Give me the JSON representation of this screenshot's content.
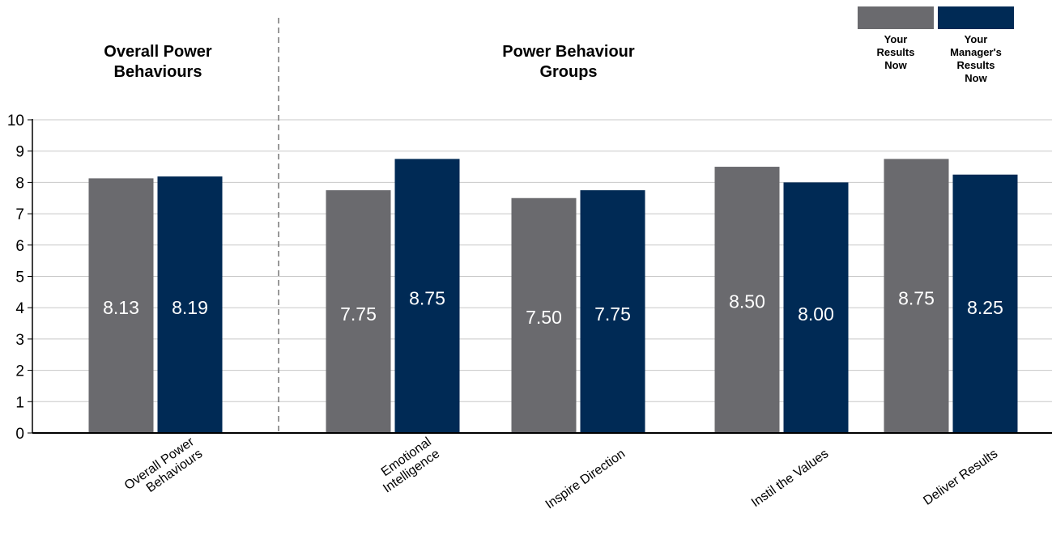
{
  "colors": {
    "your_results": "#6a6a6e",
    "manager_results": "#002a55",
    "grid": "#c8c8c8",
    "divider": "#777777",
    "value_text": "#ffffff"
  },
  "section_titles": {
    "left": [
      "Overall Power",
      "Behaviours"
    ],
    "right": [
      "Power Behaviour",
      "Groups"
    ]
  },
  "chart_data": {
    "type": "bar",
    "categories": [
      [
        "Overall Power",
        "Behaviours"
      ],
      [
        "Emotional",
        "Intelligence"
      ],
      [
        "Inspire Direction"
      ],
      [
        "Instil the Values"
      ],
      [
        "Deliver Results"
      ]
    ],
    "series": [
      {
        "name": "Your Results Now",
        "legend_lines": [
          "Your",
          "Results",
          "Now"
        ],
        "values": [
          8.13,
          7.75,
          7.5,
          8.5,
          8.75
        ],
        "labels": [
          "8.13",
          "7.75",
          "7.50",
          "8.50",
          "8.75"
        ],
        "label_values": [
          4,
          3.8,
          3.7,
          4.2,
          4.3
        ]
      },
      {
        "name": "Your Manager's Results Now",
        "legend_lines": [
          "Your",
          "Manager's",
          "Results",
          "Now"
        ],
        "values": [
          8.19,
          8.75,
          7.75,
          8.0,
          8.25
        ],
        "labels": [
          "8.19",
          "8.75",
          "7.75",
          "8.00",
          "8.25"
        ],
        "label_values": [
          4,
          4.3,
          3.8,
          3.8,
          4
        ]
      }
    ],
    "ylim": [
      0,
      10
    ],
    "yticks": [
      "0",
      "1",
      "2",
      "3",
      "4",
      "5",
      "6",
      "7",
      "8",
      "9",
      "10"
    ],
    "grid": true,
    "legend_position": "top-right"
  }
}
